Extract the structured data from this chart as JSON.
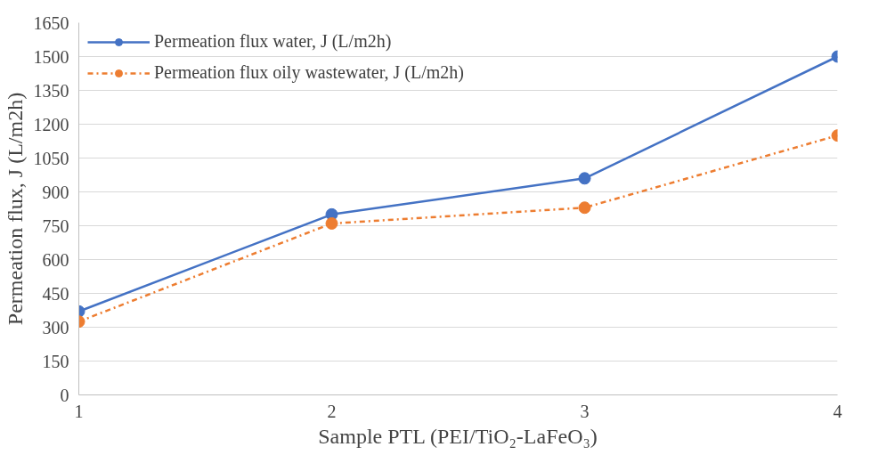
{
  "chart_data": {
    "type": "line",
    "xlabel": "Sample PTL (PEI/TiO₂-LaFeO₃)",
    "ylabel": "Permeation flux, J (L/m2h)",
    "x": [
      1,
      2,
      3,
      4
    ],
    "series": [
      {
        "name": "Permeation flux water, J (L/m2h)",
        "color": "#4472c4",
        "values": [
          370,
          800,
          960,
          1500
        ],
        "line_style": "solid"
      },
      {
        "name": "Permeation flux oily wastewater, J (L/m2h)",
        "color": "#ed7d31",
        "values": [
          325,
          760,
          830,
          1150
        ],
        "line_style": "dashdot"
      }
    ],
    "xlim": [
      1,
      4
    ],
    "xticks": [
      1,
      2,
      3,
      4
    ],
    "ylim": [
      0,
      1650
    ],
    "yticks": [
      0,
      150,
      300,
      450,
      600,
      750,
      900,
      1050,
      1200,
      1350,
      1500,
      1650
    ],
    "grid": "y",
    "legend": "top left",
    "marker": "circle"
  }
}
